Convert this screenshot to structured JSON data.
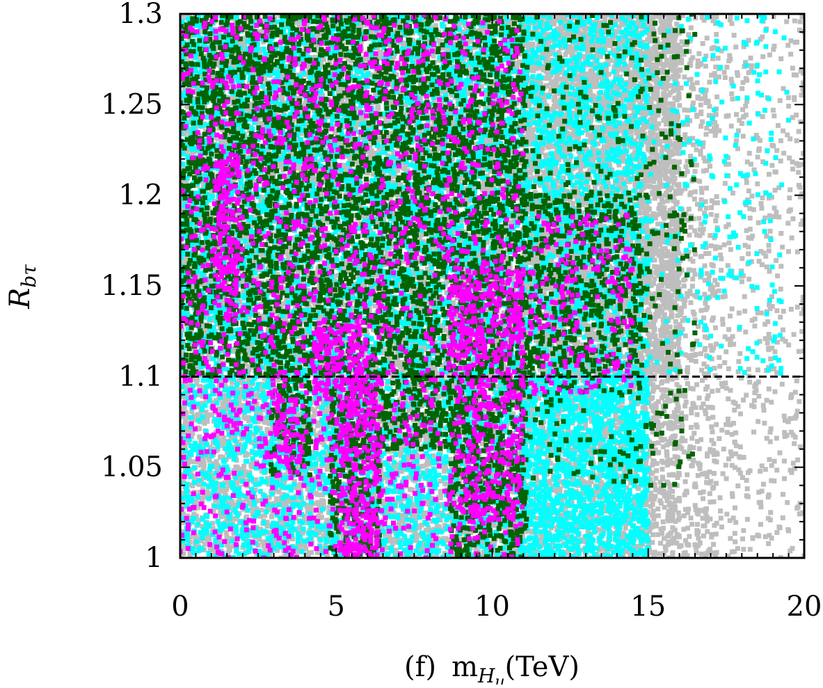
{
  "chart_data": {
    "type": "scatter",
    "title": "",
    "panel_label": "(f)",
    "xlabel": "m",
    "xlabel_subscript": "H",
    "xlabel_subsubscript": "u",
    "xlabel_unit": "(TeV)",
    "ylabel": "R",
    "ylabel_subscript": "bτ",
    "xlim": [
      0,
      20
    ],
    "ylim": [
      1.0,
      1.3
    ],
    "x_ticks": [
      0,
      5,
      10,
      15,
      20
    ],
    "x_tick_labels": [
      "0",
      "5",
      "10",
      "15",
      "20"
    ],
    "y_ticks": [
      1.0,
      1.05,
      1.1,
      1.15,
      1.2,
      1.25,
      1.3
    ],
    "y_tick_labels": [
      "1",
      "1.05",
      "1.1",
      "1.15",
      "1.2",
      "1.25",
      "1.3"
    ],
    "grid": false,
    "legend": "none",
    "reference_line": {
      "y": 1.1,
      "style": "dashed",
      "color": "#000000"
    },
    "series": [
      {
        "color": "#bebebe",
        "regions": [
          {
            "x": [
              0.0,
              20.0
            ],
            "y": [
              1.0,
              1.3
            ],
            "density": 0.25
          },
          {
            "x": [
              0.0,
              16.0
            ],
            "y": [
              1.0,
              1.3
            ],
            "density": 0.95
          },
          {
            "x": [
              11.0,
              16.0
            ],
            "y": [
              1.1,
              1.3
            ],
            "density": 0.9
          },
          {
            "x": [
              15.5,
              17.2
            ],
            "y": [
              1.0,
              1.3
            ],
            "density": 0.35
          }
        ]
      },
      {
        "color": "#00ffff",
        "regions": [
          {
            "x": [
              0.0,
              15.0
            ],
            "y": [
              1.0,
              1.3
            ],
            "density": 0.7
          },
          {
            "x": [
              11.0,
              15.0
            ],
            "y": [
              1.0,
              1.1
            ],
            "density": 0.75
          },
          {
            "x": [
              15.0,
              19.5
            ],
            "y": [
              1.1,
              1.3
            ],
            "density": 0.1
          }
        ]
      },
      {
        "color": "#006400",
        "regions": [
          {
            "x": [
              0.0,
              11.1
            ],
            "y": [
              1.1,
              1.3
            ],
            "density": 0.85
          },
          {
            "x": [
              8.6,
              11.1
            ],
            "y": [
              1.0,
              1.1
            ],
            "density": 0.95
          },
          {
            "x": [
              2.9,
              4.2
            ],
            "y": [
              1.045,
              1.1
            ],
            "density": 0.9
          },
          {
            "x": [
              4.8,
              6.4
            ],
            "y": [
              1.0,
              1.1
            ],
            "density": 0.9
          },
          {
            "x": [
              6.4,
              8.6
            ],
            "y": [
              1.06,
              1.1
            ],
            "density": 0.85
          },
          {
            "x": [
              11.1,
              14.8
            ],
            "y": [
              1.1,
              1.2
            ],
            "density": 0.6
          },
          {
            "x": [
              11.1,
              16.5
            ],
            "y": [
              1.04,
              1.3
            ],
            "density": 0.12
          }
        ]
      },
      {
        "color": "#ff00ff",
        "regions": [
          {
            "x": [
              0.0,
              11.0
            ],
            "y": [
              1.0,
              1.3
            ],
            "density": 0.2
          },
          {
            "x": [
              1.1,
              1.9
            ],
            "y": [
              1.14,
              1.22
            ],
            "density": 0.9
          },
          {
            "x": [
              3.0,
              4.0
            ],
            "y": [
              1.05,
              1.09
            ],
            "density": 0.7
          },
          {
            "x": [
              4.2,
              6.0
            ],
            "y": [
              1.09,
              1.13
            ],
            "density": 0.75
          },
          {
            "x": [
              5.1,
              6.4
            ],
            "y": [
              1.0,
              1.1
            ],
            "density": 0.8
          },
          {
            "x": [
              8.6,
              11.0
            ],
            "y": [
              1.11,
              1.16
            ],
            "density": 0.85
          },
          {
            "x": [
              8.8,
              11.0
            ],
            "y": [
              1.02,
              1.11
            ],
            "density": 0.45
          },
          {
            "x": [
              11.2,
              14.5
            ],
            "y": [
              1.09,
              1.19
            ],
            "density": 0.25
          }
        ]
      }
    ]
  }
}
